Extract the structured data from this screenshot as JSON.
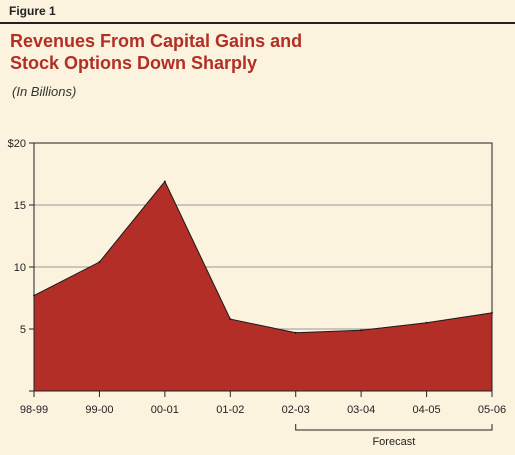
{
  "figure": {
    "label": "Figure 1",
    "title_line1": "Revenues From Capital Gains and",
    "title_line2": "Stock Options Down Sharply",
    "subtitle": "(In Billions)"
  },
  "colors": {
    "background": "#fbf3de",
    "area_fill": "#b32e26",
    "title": "#b32e26",
    "grid": "#9a9a9a"
  },
  "chart_data": {
    "type": "area",
    "title": "Revenues From Capital Gains and Stock Options Down Sharply",
    "subtitle": "(In Billions)",
    "categories": [
      "98-99",
      "99-00",
      "00-01",
      "01-02",
      "02-03",
      "03-04",
      "04-05",
      "05-06"
    ],
    "values": [
      7.7,
      10.4,
      16.9,
      5.8,
      4.7,
      4.9,
      5.5,
      6.3
    ],
    "ylim": [
      0,
      20
    ],
    "yticks": [
      0,
      5,
      10,
      15,
      20
    ],
    "ytick_labels": [
      "",
      "5",
      "10",
      "15",
      "$20"
    ],
    "grid": "horizontal",
    "xlabel": "",
    "ylabel": "",
    "annotation": {
      "text": "Forecast",
      "from": "02-03",
      "to": "05-06"
    }
  }
}
